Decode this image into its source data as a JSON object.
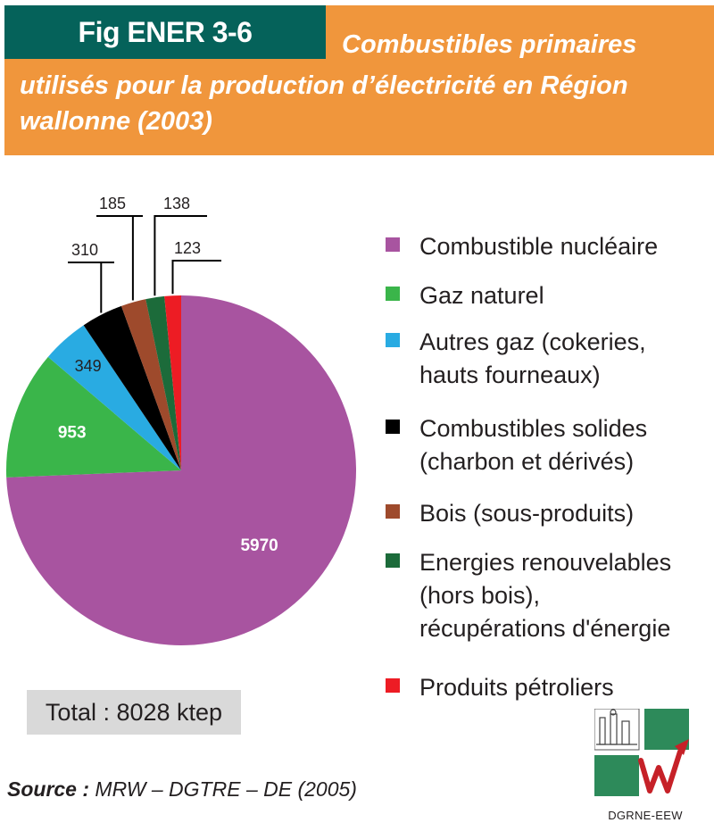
{
  "header": {
    "figure_id": "Fig ENER 3-6",
    "title_lines": [
      "Combustibles primaires",
      "utilisés pour la production d’électricité en Région",
      "wallonne (2003)"
    ]
  },
  "chart_data": {
    "type": "pie",
    "title": "Combustibles primaires utilisés pour la production d’électricité en Région wallonne (2003)",
    "unit": "ktep",
    "legend_position": "right",
    "slices": [
      {
        "label": "Combustible nucléaire",
        "value": 5970,
        "color": "#a854a0"
      },
      {
        "label": "Gaz naturel",
        "value": 953,
        "color": "#3ab54a"
      },
      {
        "label": "Autres gaz (cokeries,\nhauts fourneaux)",
        "value": 349,
        "color": "#29abe2"
      },
      {
        "label": "Combustibles solides\n(charbon et dérivés)",
        "value": 310,
        "color": "#000000"
      },
      {
        "label": "Bois (sous-produits)",
        "value": 185,
        "color": "#9e4a2c"
      },
      {
        "label": "Energies renouvelables\n(hors bois),\nrécupérations d'énergie",
        "value": 138,
        "color": "#1c6b3a"
      },
      {
        "label": "Produits pétroliers",
        "value": 123,
        "color": "#ed1c24"
      }
    ]
  },
  "total": {
    "text": "Total : 8028 ktep"
  },
  "source": {
    "label": "Source :",
    "text": " MRW – DGTRE – DE (2005)"
  },
  "logo": {
    "caption": "DGRNE-EEW",
    "colors": {
      "square": "#2d8a5a",
      "mark": "#c62128"
    }
  }
}
